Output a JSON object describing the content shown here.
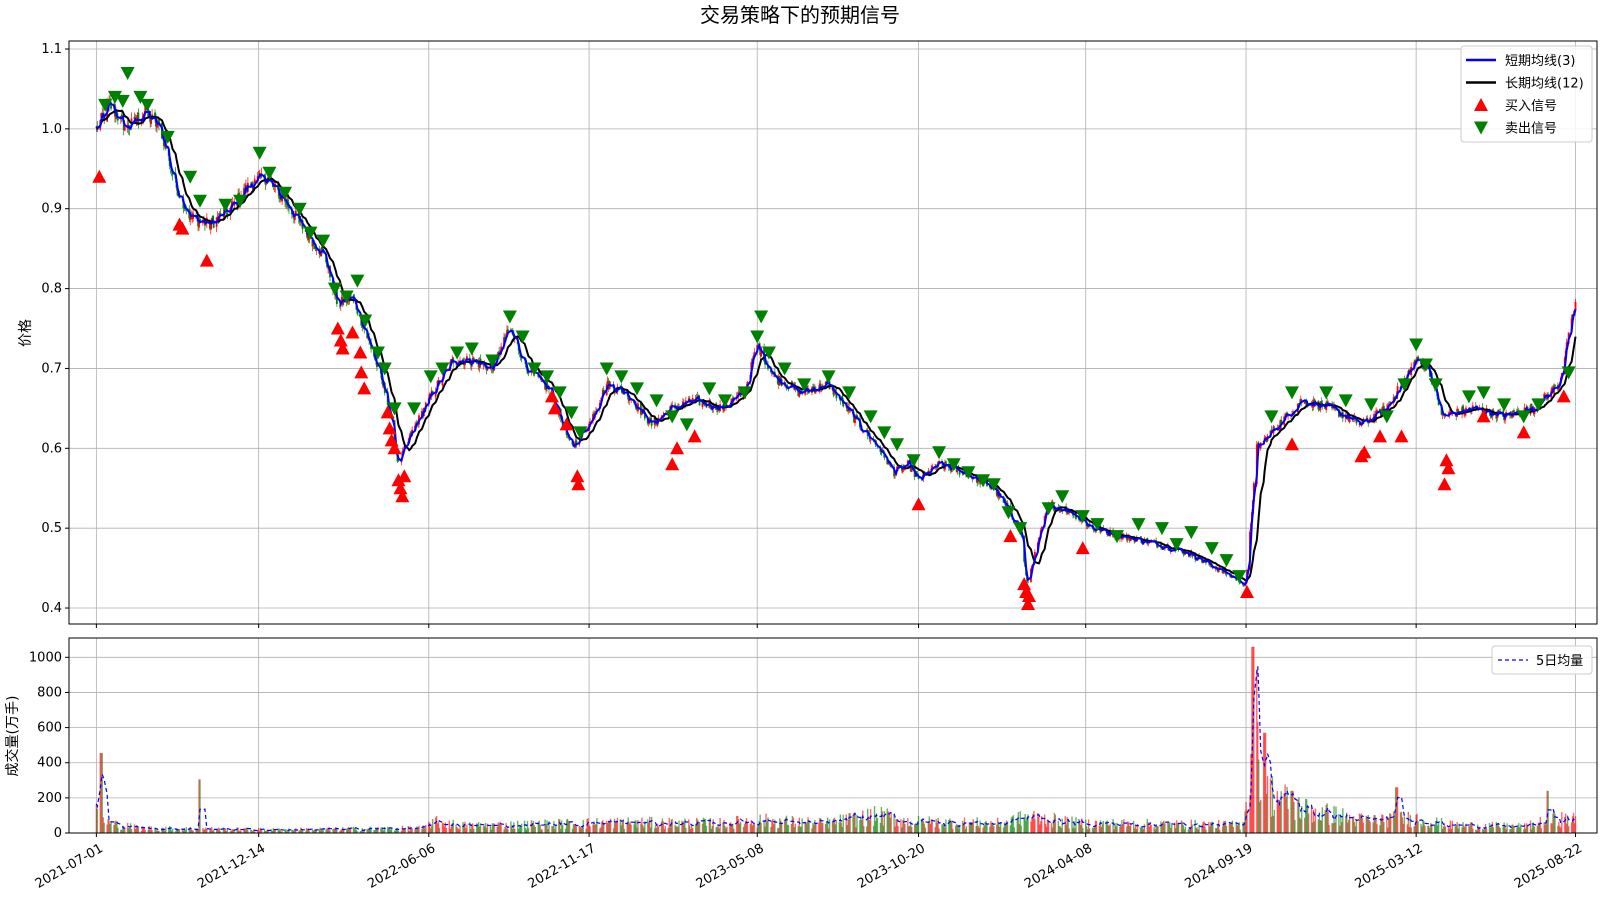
{
  "chart_data": [
    {
      "type": "line",
      "title": "交易策略下的预期信号",
      "ylabel": "价格",
      "ylim": [
        0.38,
        1.11
      ],
      "yticks": [
        0.4,
        0.5,
        0.6,
        0.7,
        0.8,
        0.9,
        1.0,
        1.1
      ],
      "xlim": [
        "2021-06-03",
        "2025-09-13"
      ],
      "xticks": [
        "2021-07-01",
        "2021-12-14",
        "2022-06-06",
        "2022-11-17",
        "2023-05-08",
        "2023-10-20",
        "2024-04-08",
        "2024-09-19",
        "2025-03-12",
        "2025-08-22"
      ],
      "grid": true,
      "legend_position": "top-right",
      "legend": [
        {
          "label": "短期均线(3)",
          "color": "#0000ff",
          "kind": "line"
        },
        {
          "label": "长期均线(12)",
          "color": "#000000",
          "kind": "line"
        },
        {
          "label": "买入信号",
          "color": "#ff0000",
          "kind": "triangle-up"
        },
        {
          "label": "卖出信号",
          "color": "#008000",
          "kind": "triangle-down"
        }
      ],
      "up_color": "#ff0000",
      "down_color": "#008000",
      "price_anchors": [
        [
          "2021-07-01",
          1.0
        ],
        [
          "2021-07-15",
          1.03
        ],
        [
          "2021-08-01",
          1.0
        ],
        [
          "2021-08-20",
          1.02
        ],
        [
          "2021-09-05",
          1.0
        ],
        [
          "2021-09-20",
          0.93
        ],
        [
          "2021-10-05",
          0.89
        ],
        [
          "2021-10-25",
          0.88
        ],
        [
          "2021-11-15",
          0.9
        ],
        [
          "2021-12-05",
          0.93
        ],
        [
          "2021-12-20",
          0.94
        ],
        [
          "2022-01-10",
          0.91
        ],
        [
          "2022-02-01",
          0.87
        ],
        [
          "2022-02-20",
          0.84
        ],
        [
          "2022-03-05",
          0.78
        ],
        [
          "2022-03-20",
          0.79
        ],
        [
          "2022-04-10",
          0.72
        ],
        [
          "2022-04-25",
          0.66
        ],
        [
          "2022-05-06",
          0.58
        ],
        [
          "2022-05-20",
          0.62
        ],
        [
          "2022-06-10",
          0.67
        ],
        [
          "2022-07-01",
          0.71
        ],
        [
          "2022-07-20",
          0.71
        ],
        [
          "2022-08-10",
          0.7
        ],
        [
          "2022-08-28",
          0.75
        ],
        [
          "2022-09-15",
          0.7
        ],
        [
          "2022-10-10",
          0.67
        ],
        [
          "2022-10-30",
          0.6
        ],
        [
          "2022-11-17",
          0.63
        ],
        [
          "2022-12-05",
          0.68
        ],
        [
          "2022-12-25",
          0.67
        ],
        [
          "2023-01-20",
          0.63
        ],
        [
          "2023-02-10",
          0.65
        ],
        [
          "2023-03-05",
          0.66
        ],
        [
          "2023-04-01",
          0.65
        ],
        [
          "2023-04-25",
          0.67
        ],
        [
          "2023-05-08",
          0.73
        ],
        [
          "2023-05-25",
          0.69
        ],
        [
          "2023-06-20",
          0.67
        ],
        [
          "2023-07-20",
          0.68
        ],
        [
          "2023-08-20",
          0.63
        ],
        [
          "2023-09-10",
          0.6
        ],
        [
          "2023-09-25",
          0.57
        ],
        [
          "2023-10-10",
          0.58
        ],
        [
          "2023-10-20",
          0.56
        ],
        [
          "2023-11-10",
          0.58
        ],
        [
          "2023-12-05",
          0.57
        ],
        [
          "2024-01-05",
          0.55
        ],
        [
          "2024-02-01",
          0.5
        ],
        [
          "2024-02-08",
          0.43
        ],
        [
          "2024-03-01",
          0.53
        ],
        [
          "2024-03-25",
          0.52
        ],
        [
          "2024-04-15",
          0.5
        ],
        [
          "2024-05-15",
          0.49
        ],
        [
          "2024-06-20",
          0.48
        ],
        [
          "2024-07-20",
          0.47
        ],
        [
          "2024-08-20",
          0.45
        ],
        [
          "2024-09-19",
          0.43
        ],
        [
          "2024-09-30",
          0.6
        ],
        [
          "2024-10-15",
          0.62
        ],
        [
          "2024-11-15",
          0.66
        ],
        [
          "2024-12-15",
          0.65
        ],
        [
          "2025-01-15",
          0.63
        ],
        [
          "2025-02-10",
          0.65
        ],
        [
          "2025-03-12",
          0.71
        ],
        [
          "2025-03-25",
          0.7
        ],
        [
          "2025-04-08",
          0.64
        ],
        [
          "2025-05-10",
          0.65
        ],
        [
          "2025-06-10",
          0.64
        ],
        [
          "2025-07-10",
          0.65
        ],
        [
          "2025-08-05",
          0.68
        ],
        [
          "2025-08-22",
          0.78
        ]
      ],
      "buy_signals": [
        [
          "2021-07-04",
          0.94
        ],
        [
          "2021-09-24",
          0.88
        ],
        [
          "2021-09-27",
          0.875
        ],
        [
          "2021-10-22",
          0.835
        ],
        [
          "2022-03-05",
          0.75
        ],
        [
          "2022-03-08",
          0.735
        ],
        [
          "2022-03-10",
          0.725
        ],
        [
          "2022-03-20",
          0.745
        ],
        [
          "2022-03-28",
          0.72
        ],
        [
          "2022-03-29",
          0.695
        ],
        [
          "2022-04-01",
          0.675
        ],
        [
          "2022-04-25",
          0.645
        ],
        [
          "2022-04-27",
          0.625
        ],
        [
          "2022-04-29",
          0.61
        ],
        [
          "2022-05-02",
          0.6
        ],
        [
          "2022-05-06",
          0.56
        ],
        [
          "2022-05-08",
          0.55
        ],
        [
          "2022-05-10",
          0.54
        ],
        [
          "2022-05-12",
          0.565
        ],
        [
          "2022-10-10",
          0.665
        ],
        [
          "2022-10-13",
          0.65
        ],
        [
          "2022-10-25",
          0.63
        ],
        [
          "2022-11-05",
          0.565
        ],
        [
          "2022-11-06",
          0.555
        ],
        [
          "2023-02-10",
          0.58
        ],
        [
          "2023-02-15",
          0.6
        ],
        [
          "2023-03-05",
          0.615
        ],
        [
          "2023-10-20",
          0.53
        ],
        [
          "2024-01-22",
          0.49
        ],
        [
          "2024-02-05",
          0.43
        ],
        [
          "2024-02-07",
          0.42
        ],
        [
          "2024-02-09",
          0.405
        ],
        [
          "2024-02-10",
          0.415
        ],
        [
          "2024-04-05",
          0.475
        ],
        [
          "2024-09-20",
          0.42
        ],
        [
          "2024-11-05",
          0.605
        ],
        [
          "2025-01-15",
          0.59
        ],
        [
          "2025-01-18",
          0.595
        ],
        [
          "2025-02-03",
          0.615
        ],
        [
          "2025-02-25",
          0.615
        ],
        [
          "2025-04-10",
          0.555
        ],
        [
          "2025-04-12",
          0.585
        ],
        [
          "2025-04-14",
          0.575
        ],
        [
          "2025-05-20",
          0.64
        ],
        [
          "2025-06-30",
          0.62
        ],
        [
          "2025-08-10",
          0.665
        ]
      ],
      "sell_signals": [
        [
          "2021-07-10",
          1.03
        ],
        [
          "2021-07-20",
          1.04
        ],
        [
          "2021-07-28",
          1.035
        ],
        [
          "2021-08-02",
          1.07
        ],
        [
          "2021-08-15",
          1.04
        ],
        [
          "2021-08-22",
          1.03
        ],
        [
          "2021-09-12",
          0.99
        ],
        [
          "2021-10-05",
          0.94
        ],
        [
          "2021-10-15",
          0.91
        ],
        [
          "2021-11-10",
          0.905
        ],
        [
          "2021-11-25",
          0.91
        ],
        [
          "2021-12-15",
          0.97
        ],
        [
          "2021-12-25",
          0.945
        ],
        [
          "2022-01-10",
          0.92
        ],
        [
          "2022-01-25",
          0.9
        ],
        [
          "2022-02-05",
          0.87
        ],
        [
          "2022-02-18",
          0.86
        ],
        [
          "2022-03-02",
          0.8
        ],
        [
          "2022-03-14",
          0.79
        ],
        [
          "2022-03-25",
          0.81
        ],
        [
          "2022-04-02",
          0.76
        ],
        [
          "2022-04-15",
          0.72
        ],
        [
          "2022-04-22",
          0.7
        ],
        [
          "2022-05-02",
          0.65
        ],
        [
          "2022-05-22",
          0.65
        ],
        [
          "2022-06-08",
          0.69
        ],
        [
          "2022-06-20",
          0.7
        ],
        [
          "2022-07-05",
          0.72
        ],
        [
          "2022-07-20",
          0.725
        ],
        [
          "2022-08-10",
          0.71
        ],
        [
          "2022-08-28",
          0.765
        ],
        [
          "2022-09-10",
          0.74
        ],
        [
          "2022-09-22",
          0.7
        ],
        [
          "2022-10-05",
          0.69
        ],
        [
          "2022-10-18",
          0.67
        ],
        [
          "2022-10-30",
          0.645
        ],
        [
          "2022-11-08",
          0.62
        ],
        [
          "2022-12-05",
          0.7
        ],
        [
          "2022-12-20",
          0.69
        ],
        [
          "2023-01-05",
          0.675
        ],
        [
          "2023-01-25",
          0.66
        ],
        [
          "2023-02-10",
          0.64
        ],
        [
          "2023-02-25",
          0.63
        ],
        [
          "2023-03-20",
          0.675
        ],
        [
          "2023-04-05",
          0.66
        ],
        [
          "2023-04-25",
          0.67
        ],
        [
          "2023-05-08",
          0.74
        ],
        [
          "2023-05-12",
          0.765
        ],
        [
          "2023-05-20",
          0.72
        ],
        [
          "2023-06-05",
          0.7
        ],
        [
          "2023-06-25",
          0.68
        ],
        [
          "2023-07-20",
          0.69
        ],
        [
          "2023-08-10",
          0.67
        ],
        [
          "2023-09-01",
          0.64
        ],
        [
          "2023-09-15",
          0.62
        ],
        [
          "2023-09-28",
          0.605
        ],
        [
          "2023-10-15",
          0.585
        ],
        [
          "2023-11-10",
          0.595
        ],
        [
          "2023-11-25",
          0.58
        ],
        [
          "2023-12-10",
          0.57
        ],
        [
          "2023-12-25",
          0.56
        ],
        [
          "2024-01-05",
          0.555
        ],
        [
          "2024-01-20",
          0.52
        ],
        [
          "2024-02-01",
          0.5
        ],
        [
          "2024-03-01",
          0.525
        ],
        [
          "2024-03-15",
          0.54
        ],
        [
          "2024-04-05",
          0.515
        ],
        [
          "2024-04-20",
          0.505
        ],
        [
          "2024-05-10",
          0.49
        ],
        [
          "2024-06-01",
          0.505
        ],
        [
          "2024-06-25",
          0.5
        ],
        [
          "2024-07-10",
          0.48
        ],
        [
          "2024-07-25",
          0.495
        ],
        [
          "2024-08-15",
          0.475
        ],
        [
          "2024-08-30",
          0.46
        ],
        [
          "2024-09-12",
          0.44
        ],
        [
          "2024-10-15",
          0.64
        ],
        [
          "2024-11-05",
          0.67
        ],
        [
          "2024-12-10",
          0.67
        ],
        [
          "2024-12-30",
          0.66
        ],
        [
          "2025-01-25",
          0.655
        ],
        [
          "2025-02-10",
          0.64
        ],
        [
          "2025-02-28",
          0.68
        ],
        [
          "2025-03-12",
          0.73
        ],
        [
          "2025-03-22",
          0.705
        ],
        [
          "2025-04-01",
          0.68
        ],
        [
          "2025-05-05",
          0.665
        ],
        [
          "2025-05-20",
          0.67
        ],
        [
          "2025-06-10",
          0.655
        ],
        [
          "2025-06-30",
          0.64
        ],
        [
          "2025-07-15",
          0.655
        ],
        [
          "2025-08-15",
          0.695
        ]
      ]
    },
    {
      "type": "bar",
      "ylabel": "成交量(万手)",
      "ylim": [
        0,
        1110
      ],
      "yticks": [
        0,
        200,
        400,
        600,
        800,
        1000
      ],
      "grid": true,
      "legend_position": "top-right",
      "legend": [
        {
          "label": "5日均量",
          "color": "#0000ff",
          "kind": "dashed-line"
        }
      ],
      "volume_anchors": [
        [
          "2021-07-01",
          120
        ],
        [
          "2021-07-15",
          60
        ],
        [
          "2021-08-15",
          30
        ],
        [
          "2022-01-01",
          20
        ],
        [
          "2022-06-01",
          30
        ],
        [
          "2022-06-10",
          70
        ],
        [
          "2022-07-15",
          45
        ],
        [
          "2022-12-15",
          65
        ],
        [
          "2023-04-01",
          60
        ],
        [
          "2023-05-08",
          80
        ],
        [
          "2023-07-15",
          60
        ],
        [
          "2023-09-10",
          110
        ],
        [
          "2023-10-10",
          70
        ],
        [
          "2024-01-10",
          60
        ],
        [
          "2024-02-10",
          100
        ],
        [
          "2024-04-01",
          60
        ],
        [
          "2024-09-15",
          50
        ],
        [
          "2024-09-28",
          520
        ],
        [
          "2024-10-10",
          260
        ],
        [
          "2024-11-15",
          150
        ],
        [
          "2025-01-15",
          80
        ],
        [
          "2025-03-12",
          90
        ],
        [
          "2025-04-15",
          50
        ],
        [
          "2025-07-01",
          40
        ],
        [
          "2025-08-01",
          90
        ],
        [
          "2025-08-22",
          80
        ]
      ],
      "volume_spikes": [
        [
          "2021-07-06",
          455
        ],
        [
          "2021-10-15",
          305
        ],
        [
          "2024-09-26",
          1060
        ],
        [
          "2024-09-29",
          930
        ],
        [
          "2024-10-08",
          570
        ],
        [
          "2024-11-05",
          240
        ],
        [
          "2025-02-20",
          260
        ],
        [
          "2025-07-25",
          240
        ]
      ]
    }
  ]
}
